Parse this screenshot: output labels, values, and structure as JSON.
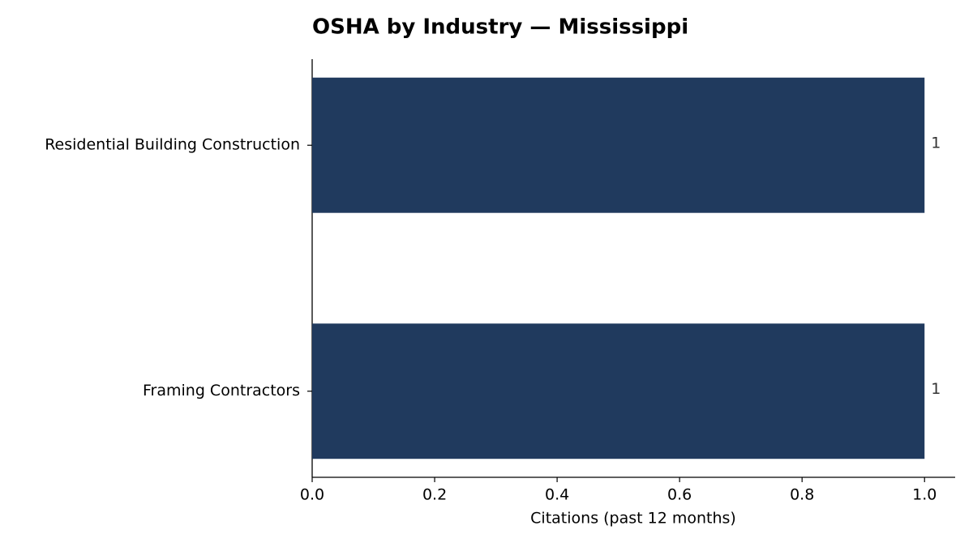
{
  "chart_data": {
    "type": "barh",
    "title": "OSHA by Industry — Mississippi",
    "xlabel": "Citations (past 12 months)",
    "categories": [
      "Residential Building Construction",
      "Framing Contractors"
    ],
    "values": [
      1,
      1
    ],
    "color": "#203a5e",
    "xlim": [
      0,
      1.05
    ],
    "xticks": [
      {
        "value": 0,
        "label": "0.0"
      },
      0.2,
      0.4,
      0.6,
      0.8,
      {
        "value": 1,
        "label": "1.0"
      }
    ],
    "grid": false
  }
}
